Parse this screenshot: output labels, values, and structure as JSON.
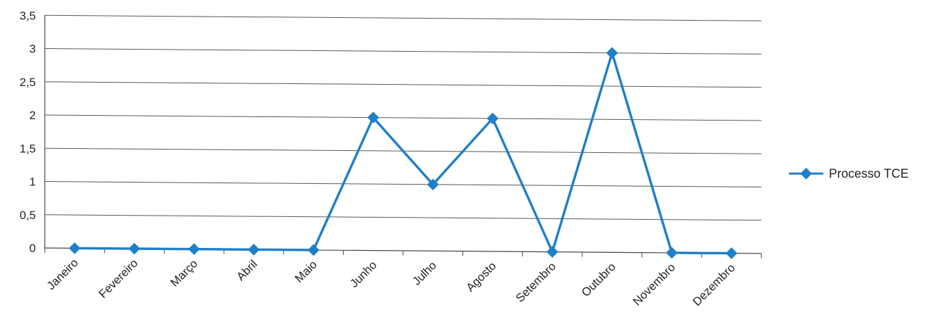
{
  "chart_data": {
    "type": "line",
    "categories": [
      "Janeiro",
      "Fevereiro",
      "Março",
      "Abril",
      "Maio",
      "Junho",
      "Julho",
      "Agosto",
      "Setembro",
      "Outubro",
      "Novembro",
      "Dezembro"
    ],
    "series": [
      {
        "name": "Processo TCE",
        "values": [
          0,
          0,
          0,
          0,
          0,
          2,
          1,
          2,
          0,
          3,
          0,
          0
        ],
        "color": "#1f7fc8"
      }
    ],
    "y_ticks": [
      "0",
      "0,5",
      "1",
      "1,5",
      "2",
      "2,5",
      "3",
      "3,5"
    ],
    "ylim": [
      0,
      3.5
    ],
    "grid": true,
    "legend_position": "right"
  }
}
